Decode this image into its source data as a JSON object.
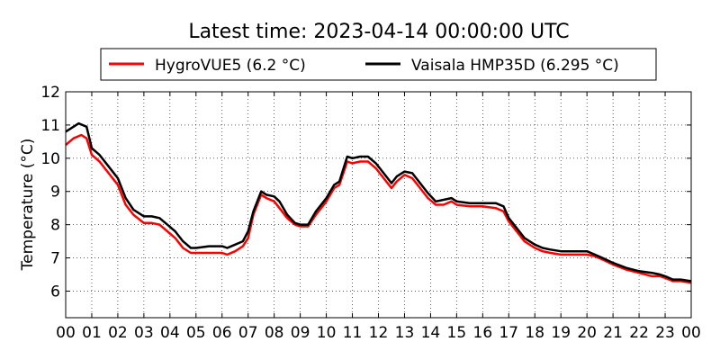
{
  "chart_data": {
    "type": "line",
    "title": "Latest time: 2023-04-14 00:00:00 UTC",
    "ylabel": "Temperature (°C)",
    "xlabel": "",
    "xlim": [
      0,
      24
    ],
    "ylim": [
      5.2,
      12
    ],
    "x_tick_labels": [
      "00",
      "01",
      "02",
      "03",
      "04",
      "05",
      "06",
      "07",
      "08",
      "09",
      "10",
      "11",
      "12",
      "13",
      "14",
      "15",
      "16",
      "17",
      "18",
      "19",
      "20",
      "21",
      "22",
      "23",
      "00"
    ],
    "y_ticks": [
      6,
      7,
      8,
      9,
      10,
      11,
      12
    ],
    "grid": true,
    "legend_position": "top-center",
    "series": [
      {
        "name": "HygroVUE5 (6.2 °C)",
        "color": "#ff0000",
        "points": [
          [
            0,
            10.4
          ],
          [
            0.3,
            10.6
          ],
          [
            0.6,
            10.7
          ],
          [
            0.8,
            10.6
          ],
          [
            1.0,
            10.1
          ],
          [
            1.3,
            9.9
          ],
          [
            1.6,
            9.6
          ],
          [
            2.0,
            9.2
          ],
          [
            2.3,
            8.6
          ],
          [
            2.6,
            8.3
          ],
          [
            3.0,
            8.05
          ],
          [
            3.3,
            8.05
          ],
          [
            3.6,
            8.0
          ],
          [
            3.9,
            7.8
          ],
          [
            4.2,
            7.6
          ],
          [
            4.5,
            7.3
          ],
          [
            4.8,
            7.15
          ],
          [
            5.0,
            7.15
          ],
          [
            5.5,
            7.15
          ],
          [
            6.0,
            7.15
          ],
          [
            6.2,
            7.1
          ],
          [
            6.5,
            7.2
          ],
          [
            6.8,
            7.35
          ],
          [
            7.0,
            7.6
          ],
          [
            7.2,
            8.3
          ],
          [
            7.5,
            8.9
          ],
          [
            7.7,
            8.8
          ],
          [
            8.0,
            8.7
          ],
          [
            8.2,
            8.5
          ],
          [
            8.5,
            8.2
          ],
          [
            8.8,
            8.0
          ],
          [
            9.0,
            7.95
          ],
          [
            9.3,
            7.95
          ],
          [
            9.6,
            8.3
          ],
          [
            10.0,
            8.7
          ],
          [
            10.3,
            9.1
          ],
          [
            10.5,
            9.2
          ],
          [
            10.8,
            9.9
          ],
          [
            11.0,
            9.85
          ],
          [
            11.3,
            9.9
          ],
          [
            11.6,
            9.9
          ],
          [
            11.9,
            9.7
          ],
          [
            12.2,
            9.4
          ],
          [
            12.5,
            9.1
          ],
          [
            12.7,
            9.3
          ],
          [
            13.0,
            9.5
          ],
          [
            13.3,
            9.4
          ],
          [
            13.6,
            9.1
          ],
          [
            13.9,
            8.8
          ],
          [
            14.2,
            8.6
          ],
          [
            14.5,
            8.6
          ],
          [
            14.8,
            8.7
          ],
          [
            15.0,
            8.6
          ],
          [
            15.5,
            8.55
          ],
          [
            16.0,
            8.55
          ],
          [
            16.5,
            8.5
          ],
          [
            16.8,
            8.4
          ],
          [
            17.0,
            8.1
          ],
          [
            17.3,
            7.8
          ],
          [
            17.6,
            7.5
          ],
          [
            18.0,
            7.3
          ],
          [
            18.3,
            7.2
          ],
          [
            18.6,
            7.15
          ],
          [
            19.0,
            7.1
          ],
          [
            19.5,
            7.1
          ],
          [
            20.0,
            7.1
          ],
          [
            20.3,
            7.05
          ],
          [
            20.6,
            6.95
          ],
          [
            21.0,
            6.8
          ],
          [
            21.5,
            6.65
          ],
          [
            22.0,
            6.55
          ],
          [
            22.5,
            6.45
          ],
          [
            22.8,
            6.45
          ],
          [
            23.0,
            6.4
          ],
          [
            23.3,
            6.3
          ],
          [
            23.6,
            6.3
          ],
          [
            24.0,
            6.25
          ]
        ]
      },
      {
        "name": "Vaisala HMP35D (6.295 °C)",
        "color": "#000000",
        "points": [
          [
            0,
            10.8
          ],
          [
            0.3,
            10.95
          ],
          [
            0.5,
            11.05
          ],
          [
            0.8,
            10.95
          ],
          [
            1.0,
            10.3
          ],
          [
            1.3,
            10.1
          ],
          [
            1.6,
            9.8
          ],
          [
            2.0,
            9.4
          ],
          [
            2.3,
            8.8
          ],
          [
            2.6,
            8.45
          ],
          [
            3.0,
            8.25
          ],
          [
            3.3,
            8.25
          ],
          [
            3.6,
            8.2
          ],
          [
            3.9,
            8.0
          ],
          [
            4.2,
            7.8
          ],
          [
            4.5,
            7.5
          ],
          [
            4.8,
            7.3
          ],
          [
            5.0,
            7.3
          ],
          [
            5.5,
            7.35
          ],
          [
            6.0,
            7.35
          ],
          [
            6.2,
            7.3
          ],
          [
            6.5,
            7.4
          ],
          [
            6.8,
            7.5
          ],
          [
            7.0,
            7.8
          ],
          [
            7.2,
            8.4
          ],
          [
            7.5,
            9.0
          ],
          [
            7.7,
            8.9
          ],
          [
            8.0,
            8.85
          ],
          [
            8.2,
            8.7
          ],
          [
            8.5,
            8.3
          ],
          [
            8.8,
            8.05
          ],
          [
            9.0,
            8.0
          ],
          [
            9.3,
            8.0
          ],
          [
            9.6,
            8.4
          ],
          [
            10.0,
            8.8
          ],
          [
            10.3,
            9.2
          ],
          [
            10.5,
            9.3
          ],
          [
            10.8,
            10.05
          ],
          [
            11.0,
            10.0
          ],
          [
            11.3,
            10.05
          ],
          [
            11.6,
            10.05
          ],
          [
            11.9,
            9.85
          ],
          [
            12.2,
            9.55
          ],
          [
            12.5,
            9.25
          ],
          [
            12.7,
            9.45
          ],
          [
            13.0,
            9.6
          ],
          [
            13.3,
            9.55
          ],
          [
            13.6,
            9.25
          ],
          [
            13.9,
            8.95
          ],
          [
            14.2,
            8.7
          ],
          [
            14.5,
            8.75
          ],
          [
            14.8,
            8.8
          ],
          [
            15.0,
            8.7
          ],
          [
            15.5,
            8.65
          ],
          [
            16.0,
            8.65
          ],
          [
            16.5,
            8.65
          ],
          [
            16.8,
            8.55
          ],
          [
            17.0,
            8.2
          ],
          [
            17.3,
            7.9
          ],
          [
            17.6,
            7.6
          ],
          [
            18.0,
            7.4
          ],
          [
            18.3,
            7.3
          ],
          [
            18.6,
            7.25
          ],
          [
            19.0,
            7.2
          ],
          [
            19.5,
            7.2
          ],
          [
            20.0,
            7.2
          ],
          [
            20.3,
            7.1
          ],
          [
            20.6,
            7.0
          ],
          [
            21.0,
            6.85
          ],
          [
            21.5,
            6.7
          ],
          [
            22.0,
            6.6
          ],
          [
            22.5,
            6.55
          ],
          [
            22.8,
            6.5
          ],
          [
            23.0,
            6.45
          ],
          [
            23.3,
            6.35
          ],
          [
            23.6,
            6.35
          ],
          [
            24.0,
            6.3
          ]
        ]
      }
    ]
  }
}
